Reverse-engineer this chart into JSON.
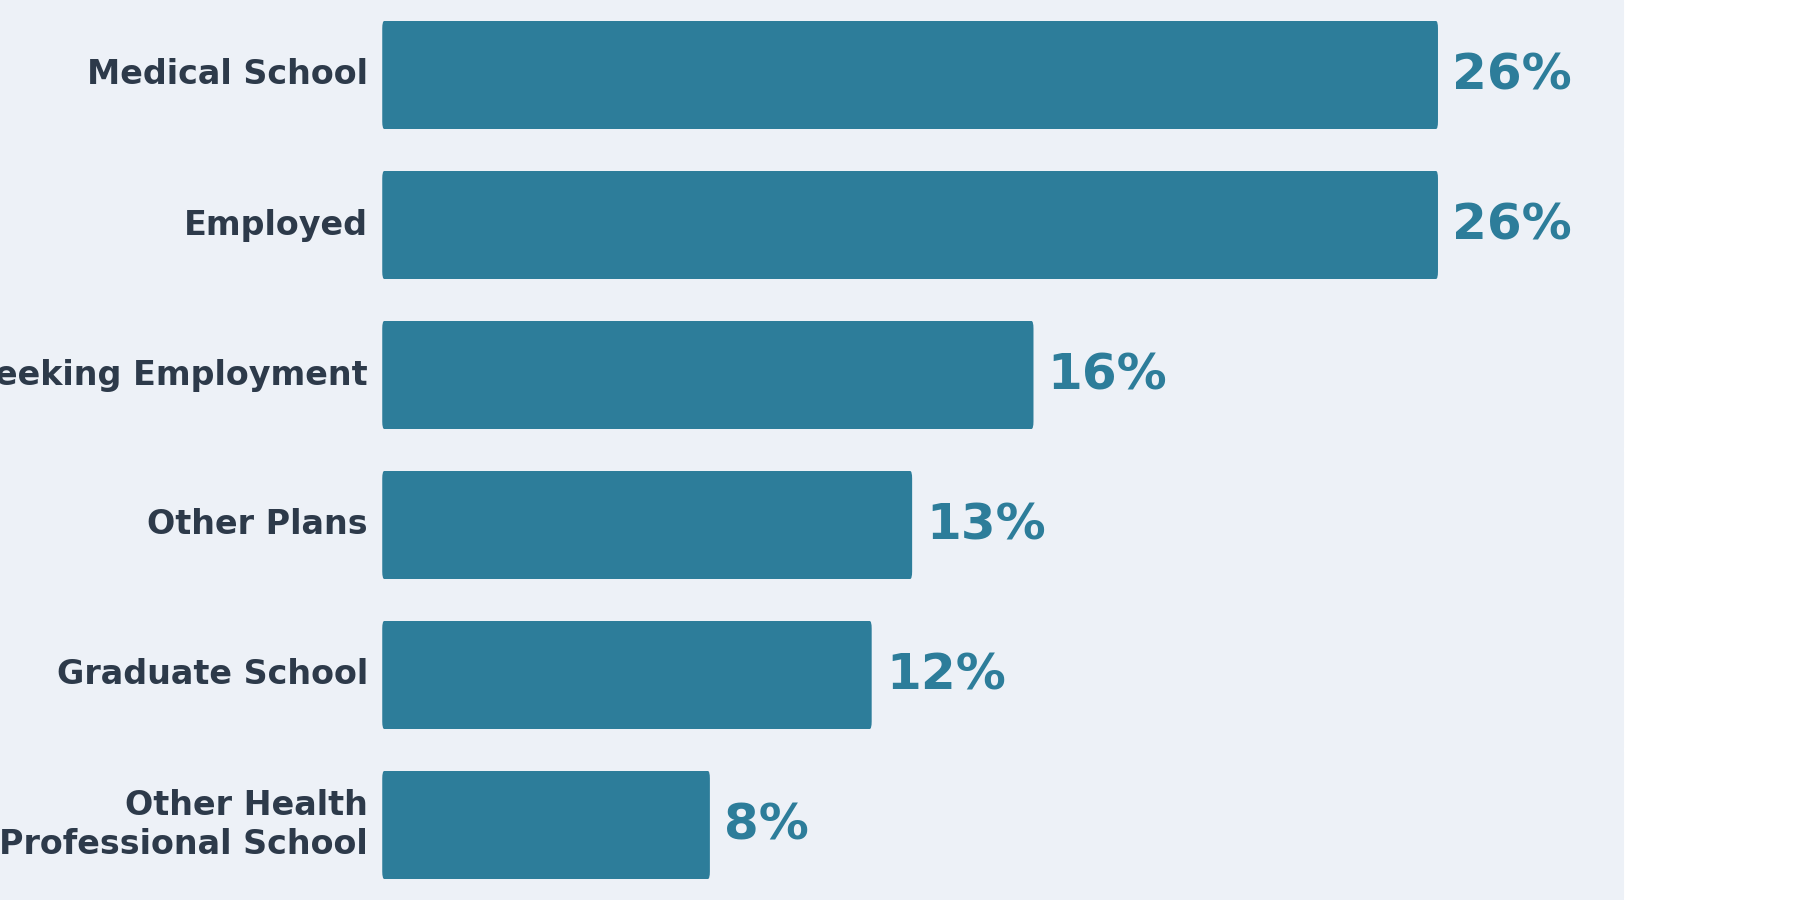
{
  "categories": [
    "Medical School",
    "Employed",
    "Seeking Employment",
    "Other Plans",
    "Graduate School",
    "Other Health\nProfessional School"
  ],
  "values": [
    26,
    26,
    16,
    13,
    12,
    8
  ],
  "bar_color": "#2d7d9a",
  "label_color": "#2d7d9a",
  "category_color": "#2d3a4a",
  "row_bg_color": "#edf1f7",
  "fig_background": "#ffffff",
  "bar_height": 0.62,
  "max_value": 30,
  "category_fontsize": 24,
  "percentage_fontsize": 36
}
